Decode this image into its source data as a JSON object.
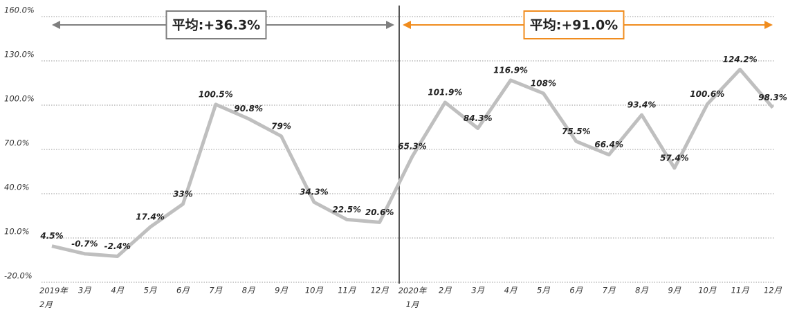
{
  "chart_data": {
    "type": "line",
    "categories": [
      "2019年\n2月",
      "3月",
      "4月",
      "5月",
      "6月",
      "7月",
      "8月",
      "9月",
      "10月",
      "11月",
      "12月",
      "2020年\n1月",
      "2月",
      "3月",
      "4月",
      "5月",
      "6月",
      "7月",
      "8月",
      "9月",
      "10月",
      "11月",
      "12月"
    ],
    "series": [
      {
        "color": "#bfbfbf",
        "values": [
          4.5,
          -0.7,
          -2.4,
          17.4,
          33,
          100.5,
          90.8,
          79,
          34.3,
          22.5,
          20.6,
          65.3,
          101.9,
          84.3,
          116.9,
          108,
          75.5,
          66.4,
          93.4,
          57.4,
          100.6,
          124.2,
          98.3
        ],
        "value_labels": [
          "4.5%",
          "-0.7%",
          "-2.4%",
          "17.4%",
          "33%",
          "100.5%",
          "90.8%",
          "79%",
          "34.3%",
          "22.5%",
          "20.6%",
          "65.3%",
          "101.9%",
          "84.3%",
          "116.9%",
          "108%",
          "75.5%",
          "66.4%",
          "93.4%",
          "57.4%",
          "100.6%",
          "124.2%",
          "98.3%"
        ]
      }
    ],
    "ylim": [
      -20,
      160
    ],
    "yticks": [
      {
        "value": -20,
        "label": "-20.0%"
      },
      {
        "value": 10,
        "label": "10.0%"
      },
      {
        "value": 40,
        "label": "40.0%"
      },
      {
        "value": 70,
        "label": "70.0%"
      },
      {
        "value": 100,
        "label": "100.0%"
      },
      {
        "value": 130,
        "label": "130.0%"
      },
      {
        "value": 160,
        "label": "160.0%"
      }
    ],
    "grid": true,
    "annotations": [
      {
        "text": "平均:+36.3%",
        "color": "#7f7f7f"
      },
      {
        "text": "平均:+91.0%",
        "color": "#f08c1e"
      }
    ]
  }
}
